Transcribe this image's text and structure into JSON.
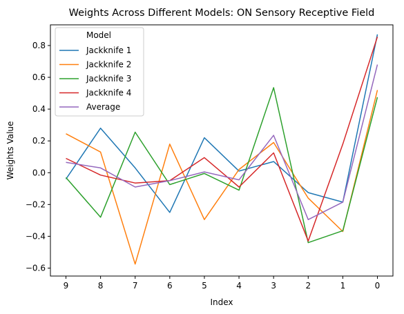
{
  "chart_data": {
    "type": "line",
    "title": "Weights Across Different Models: ON Sensory Receptive Field",
    "xlabel": "Index",
    "ylabel": "Weights Value",
    "x": [
      9,
      8,
      7,
      6,
      5,
      4,
      3,
      2,
      1,
      0
    ],
    "x_inverted": true,
    "xticks": [
      "9",
      "8",
      "7",
      "6",
      "5",
      "4",
      "3",
      "2",
      "1",
      "0"
    ],
    "ylim": [
      -0.65,
      0.93
    ],
    "yticks": [
      -0.6,
      -0.4,
      -0.2,
      0.0,
      0.2,
      0.4,
      0.6,
      0.8
    ],
    "ytick_labels": [
      "−0.6",
      "−0.4",
      "−0.2",
      "0.0",
      "0.2",
      "0.4",
      "0.6",
      "0.8"
    ],
    "grid": false,
    "legend": {
      "title": "Model",
      "placement": "top-left"
    },
    "series": [
      {
        "name": "Jackknife 1",
        "color": "#1f77b4",
        "values": [
          -0.04,
          0.28,
          0.03,
          -0.25,
          0.22,
          0.01,
          0.07,
          -0.125,
          -0.185,
          0.87
        ]
      },
      {
        "name": "Jackknife 2",
        "color": "#ff7f0e",
        "values": [
          0.245,
          0.13,
          -0.575,
          0.18,
          -0.295,
          0.02,
          0.19,
          -0.16,
          -0.37,
          0.52
        ]
      },
      {
        "name": "Jackknife 3",
        "color": "#2ca02c",
        "values": [
          -0.03,
          -0.28,
          0.255,
          -0.075,
          -0.005,
          -0.11,
          0.535,
          -0.44,
          -0.365,
          0.475
        ]
      },
      {
        "name": "Jackknife 4",
        "color": "#d62728",
        "values": [
          0.09,
          -0.015,
          -0.065,
          -0.05,
          0.095,
          -0.09,
          0.125,
          -0.43,
          0.18,
          0.855
        ]
      },
      {
        "name": "Average",
        "color": "#9467bd",
        "values": [
          0.065,
          0.03,
          -0.09,
          -0.05,
          0.005,
          -0.045,
          0.235,
          -0.295,
          -0.185,
          0.68
        ]
      }
    ]
  }
}
